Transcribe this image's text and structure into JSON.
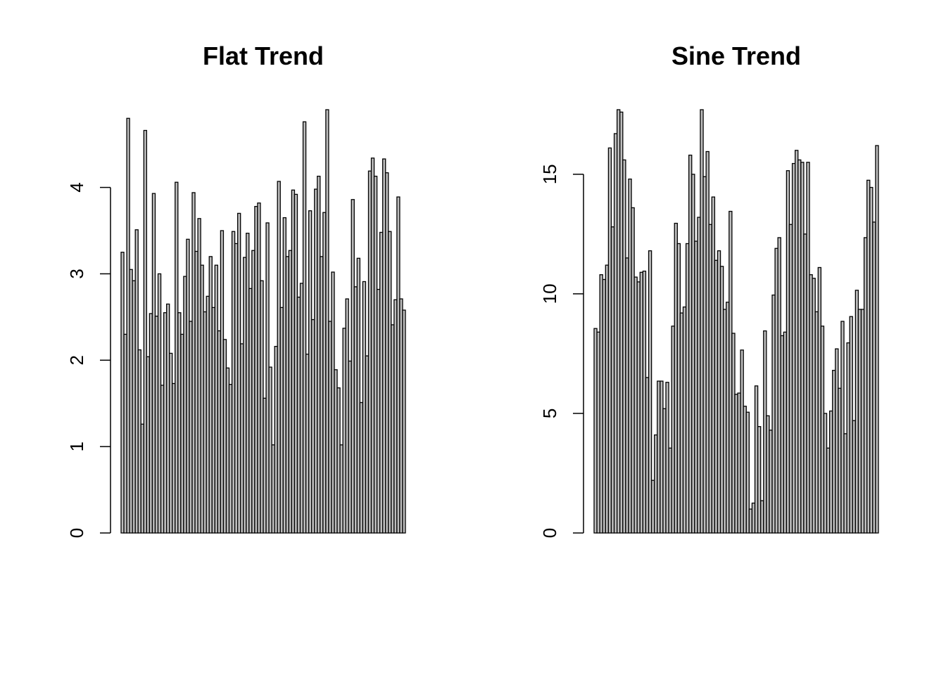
{
  "chart_data": [
    {
      "type": "bar",
      "title": "Flat Trend",
      "xlabel": "",
      "ylabel": "",
      "ylim": [
        0,
        4.9
      ],
      "yticks": [
        0,
        1,
        2,
        3,
        4
      ],
      "ytick_labels": [
        "0",
        "1",
        "2",
        "3",
        "4"
      ],
      "grid": false,
      "values": [
        3.25,
        2.3,
        4.8,
        3.05,
        2.92,
        3.51,
        2.12,
        1.26,
        4.66,
        2.04,
        2.54,
        3.93,
        2.51,
        3.0,
        1.71,
        2.55,
        2.65,
        2.08,
        1.73,
        4.06,
        2.55,
        2.3,
        2.97,
        3.4,
        2.45,
        3.94,
        3.26,
        3.64,
        3.1,
        2.56,
        2.74,
        3.2,
        2.61,
        3.1,
        2.34,
        3.5,
        2.24,
        1.91,
        1.72,
        3.49,
        3.35,
        3.7,
        2.19,
        3.19,
        3.47,
        2.83,
        3.27,
        3.78,
        3.82,
        2.92,
        1.56,
        3.59,
        1.92,
        1.02,
        2.16,
        4.07,
        2.61,
        3.65,
        3.2,
        3.27,
        3.97,
        3.92,
        2.73,
        2.89,
        4.76,
        2.07,
        3.73,
        2.47,
        3.98,
        4.13,
        3.2,
        3.71,
        4.9,
        2.45,
        3.02,
        1.89,
        1.68,
        1.02,
        2.37,
        2.71,
        1.99,
        3.86,
        2.85,
        3.18,
        1.51,
        2.91,
        2.05,
        4.19,
        4.34,
        4.13,
        2.82,
        3.48,
        4.33,
        4.17,
        3.49,
        2.41,
        2.7,
        3.89,
        2.71,
        2.58
      ]
    },
    {
      "type": "bar",
      "title": "Sine Trend",
      "xlabel": "",
      "ylabel": "",
      "ylim": [
        0,
        17.7
      ],
      "yticks": [
        0,
        5,
        10,
        15
      ],
      "ytick_labels": [
        "0",
        "5",
        "10",
        "15"
      ],
      "grid": false,
      "values": [
        8.55,
        8.4,
        10.8,
        10.6,
        11.2,
        16.1,
        12.8,
        16.7,
        17.7,
        17.6,
        15.6,
        11.5,
        14.8,
        13.6,
        10.7,
        10.5,
        10.9,
        10.95,
        6.5,
        11.8,
        2.2,
        4.1,
        6.35,
        6.35,
        5.2,
        6.3,
        3.55,
        8.65,
        12.95,
        12.1,
        9.2,
        9.45,
        12.1,
        15.8,
        15.0,
        12.2,
        13.2,
        17.7,
        14.9,
        15.95,
        12.9,
        14.05,
        11.4,
        11.8,
        11.15,
        9.35,
        9.65,
        13.45,
        8.35,
        5.8,
        5.85,
        7.65,
        5.3,
        5.05,
        1.0,
        1.25,
        6.15,
        4.45,
        1.35,
        8.45,
        4.9,
        4.3,
        9.95,
        11.9,
        12.35,
        8.25,
        8.4,
        15.15,
        12.9,
        15.45,
        16.0,
        15.6,
        15.5,
        12.5,
        15.5,
        10.8,
        10.65,
        9.25,
        11.1,
        8.65,
        5.0,
        3.55,
        5.1,
        6.8,
        7.7,
        6.05,
        8.85,
        4.15,
        7.95,
        9.05,
        4.7,
        10.15,
        9.35,
        9.35,
        12.35,
        14.75,
        14.45,
        13.0,
        16.2
      ]
    }
  ]
}
